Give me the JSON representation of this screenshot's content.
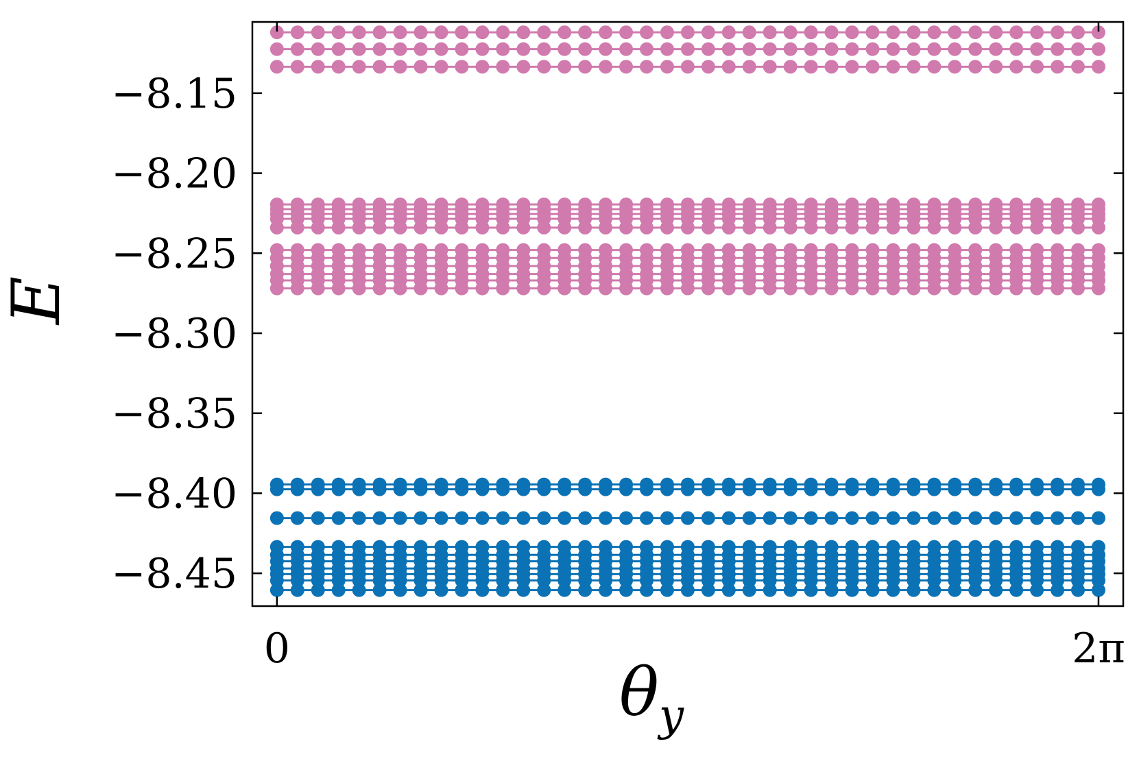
{
  "chart_data": {
    "type": "scatter",
    "xlabel": "θ",
    "xlabel_sub": "y",
    "ylabel": "E",
    "xlim": [
      -0.188,
      6.472
    ],
    "ylim": [
      -8.4705,
      -8.1055
    ],
    "x_ticks": [
      {
        "value": 0,
        "label": "0"
      },
      {
        "value": 6.283,
        "label": "2π"
      }
    ],
    "y_ticks": [
      {
        "value": -8.15,
        "label": "−8.15"
      },
      {
        "value": -8.2,
        "label": "−8.20"
      },
      {
        "value": -8.25,
        "label": "−8.25"
      },
      {
        "value": -8.3,
        "label": "−8.30"
      },
      {
        "value": -8.35,
        "label": "−8.35"
      },
      {
        "value": -8.4,
        "label": "−8.40"
      },
      {
        "value": -8.45,
        "label": "−8.45"
      }
    ],
    "grid": false,
    "legend": "none",
    "x_samples": {
      "start": 0,
      "end": 6.283,
      "count": 41
    },
    "series": [
      {
        "color": "#d07aae",
        "levels": [
          -8.112,
          -8.1225,
          -8.1335,
          -8.2195,
          -8.2225,
          -8.2255,
          -8.2285,
          -8.234,
          -8.248,
          -8.253,
          -8.258,
          -8.263,
          -8.267,
          -8.272
        ]
      },
      {
        "color": "#0b72b5",
        "levels": [
          -8.3945,
          -8.3975,
          -8.4155,
          -8.4335,
          -8.4385,
          -8.4425,
          -8.447,
          -8.4505,
          -8.4545,
          -8.4605
        ]
      }
    ]
  }
}
